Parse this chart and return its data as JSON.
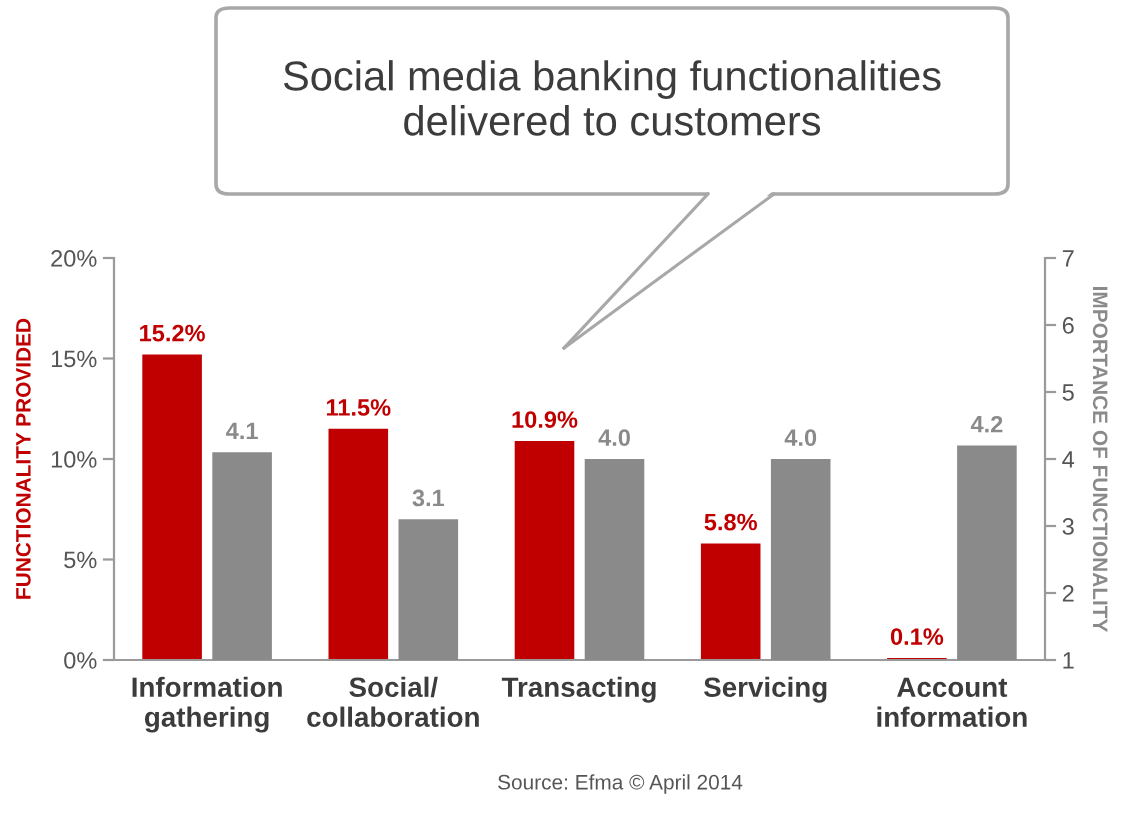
{
  "chart_data": {
    "type": "bar",
    "title": "Social media banking functionalities\ndelivered to customers",
    "categories": [
      "Information\ngathering",
      "Social/\ncollaboration",
      "Transacting",
      "Servicing",
      "Account\ninformation"
    ],
    "series": [
      {
        "color": "#c00000",
        "values": [
          15.2,
          11.5,
          10.9,
          5.8,
          0.1
        ],
        "value_labels": [
          "15.2%",
          "11.5%",
          "10.9%",
          "5.8%",
          "0.1%"
        ]
      },
      {
        "color": "#8a8a8a",
        "axis": "y2",
        "values": [
          4.1,
          3.1,
          4.0,
          4.0,
          4.2
        ],
        "value_labels": [
          "4.1",
          "3.1",
          "4.0",
          "4.0",
          "4.2"
        ]
      }
    ],
    "ylabel": "FUNCTIONALITY PROVIDED",
    "y2label": "IMPORTANCE OF FUNCTIONALITY",
    "ylim": [
      0,
      20
    ],
    "yticks": [
      {
        "value": 0,
        "label": "0%"
      },
      {
        "value": 5,
        "label": "5%"
      },
      {
        "value": 10,
        "label": "10%"
      },
      {
        "value": 15,
        "label": "15%"
      },
      {
        "value": 20,
        "label": "20%"
      }
    ],
    "y2lim": [
      1,
      7
    ],
    "y2ticks": [
      1,
      2,
      3,
      4,
      5,
      6,
      7
    ],
    "annotations": [
      "Source: Efma © April 2014"
    ]
  }
}
